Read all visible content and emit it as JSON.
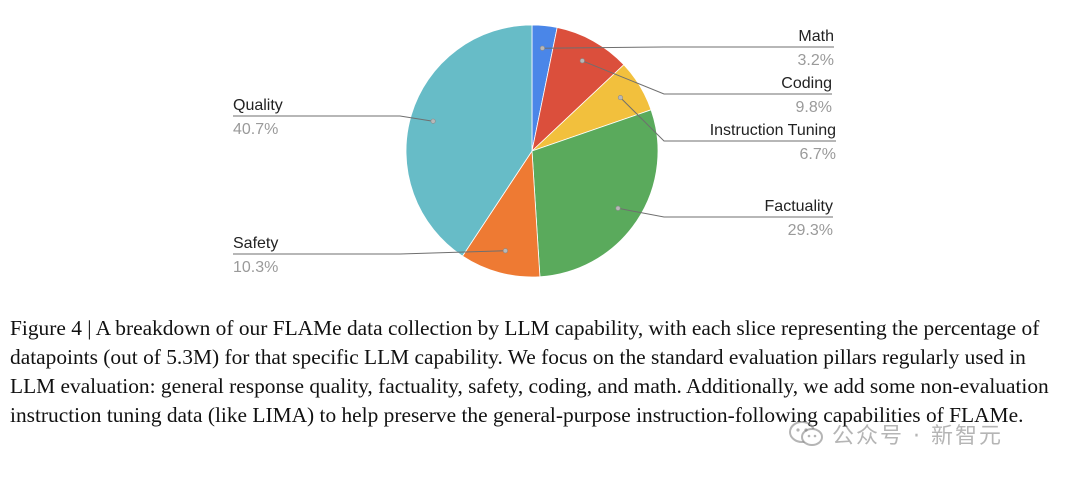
{
  "chart_data": {
    "type": "pie",
    "slices": [
      {
        "label": "Math",
        "value": 3.2,
        "pct_text": "3.2%",
        "color": "#4a86e8"
      },
      {
        "label": "Coding",
        "value": 9.8,
        "pct_text": "9.8%",
        "color": "#db4f3c"
      },
      {
        "label": "Instruction Tuning",
        "value": 6.7,
        "pct_text": "6.7%",
        "color": "#f2c03d"
      },
      {
        "label": "Factuality",
        "value": 29.3,
        "pct_text": "29.3%",
        "color": "#5aaa5c"
      },
      {
        "label": "Safety",
        "value": 10.3,
        "pct_text": "10.3%",
        "color": "#ee7a33"
      },
      {
        "label": "Quality",
        "value": 40.7,
        "pct_text": "40.7%",
        "color": "#67bcc7"
      }
    ],
    "start_angle_deg": 0,
    "direction": "clockwise",
    "label_style": "outside with leader lines"
  },
  "caption": {
    "text": "Figure 4 | A breakdown of our FLAMe data collection by LLM capability, with each slice representing the percentage of datapoints (out of 5.3M) for that specific LLM capability. We focus on the standard evaluation pillars regularly used in LLM evaluation: general response quality, factuality, safety, coding, and math. Additionally, we add some non-evaluation instruction tuning data (like LIMA) to help preserve the general-purpose instruction-following capabilities of FLAMe."
  },
  "watermark": {
    "icon": "wechat-icon",
    "text": "公众号 · 新智元"
  }
}
